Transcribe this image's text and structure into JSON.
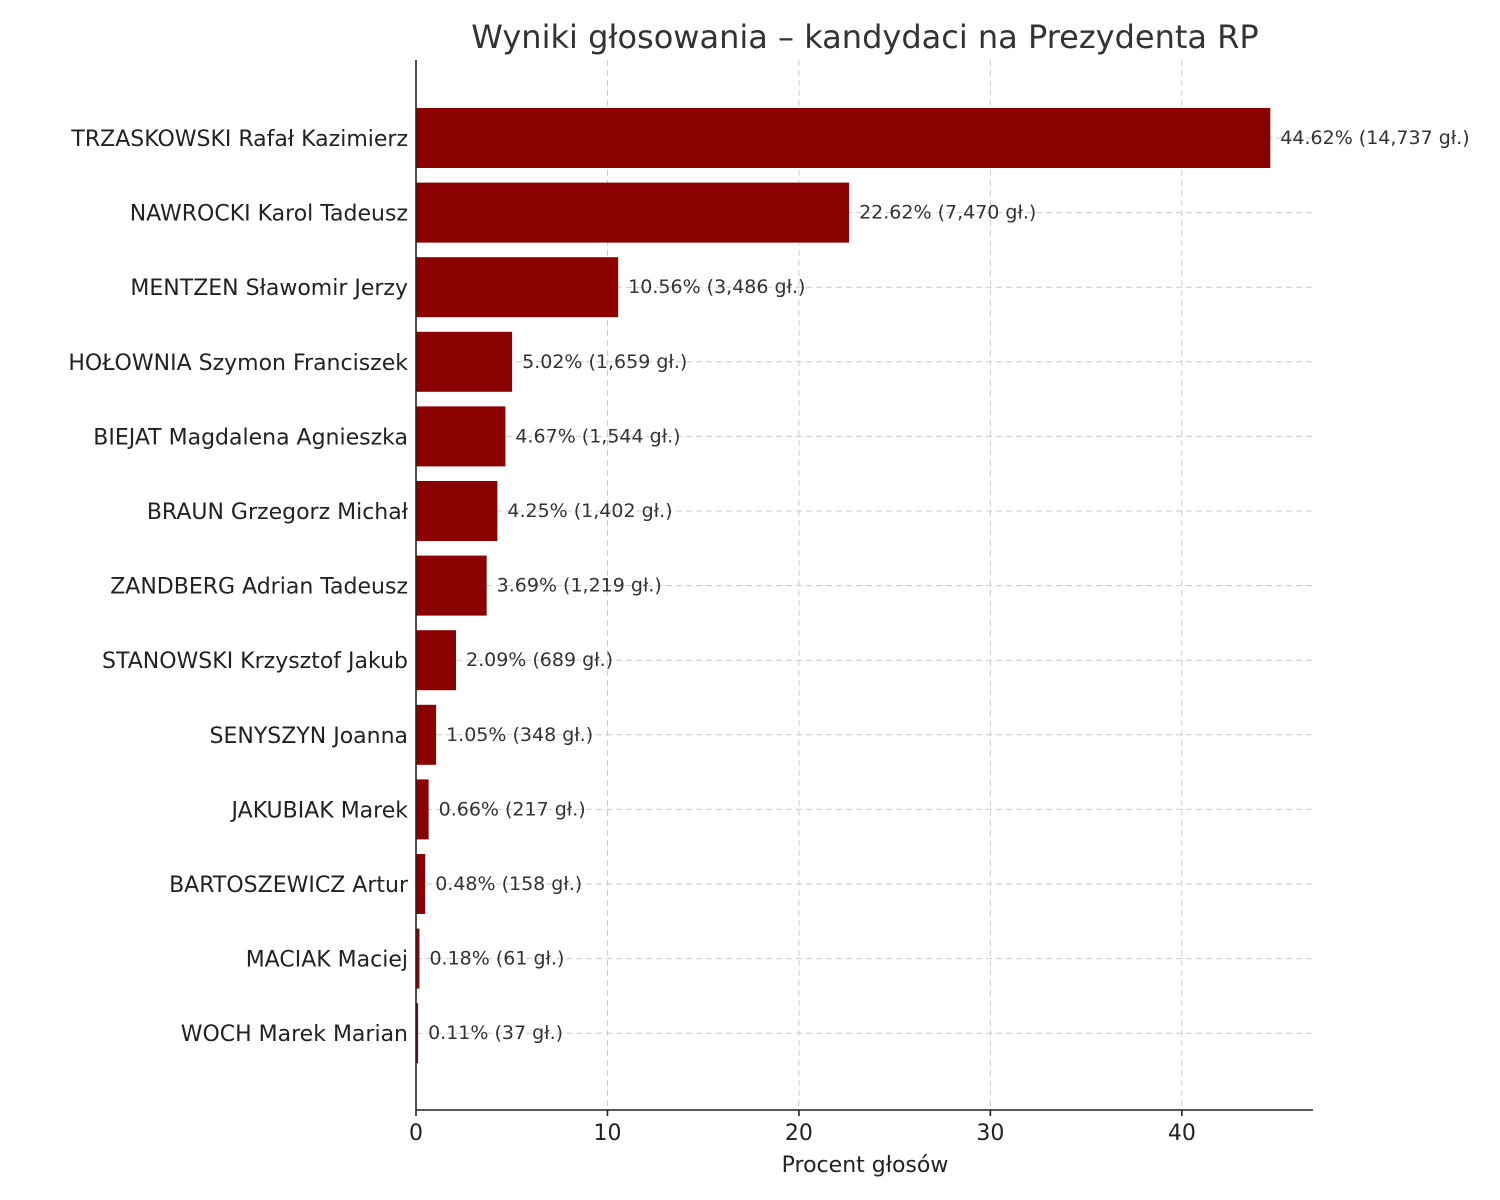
{
  "chart_data": {
    "type": "bar",
    "orientation": "horizontal",
    "title": "Wyniki głosowania – kandydaci na Prezydenta RP",
    "xlabel": "Procent głosów",
    "ylabel": "",
    "xlim": [
      0,
      46.85
    ],
    "xticks": [
      0,
      10,
      20,
      30,
      40
    ],
    "grid": true,
    "bar_color": "#8b0000",
    "categories": [
      "TRZASKOWSKI Rafał Kazimierz",
      "NAWROCKI Karol Tadeusz",
      "MENTZEN Sławomir Jerzy",
      "HOŁOWNIA Szymon Franciszek",
      "BIEJAT Magdalena Agnieszka",
      "BRAUN Grzegorz Michał",
      "ZANDBERG Adrian Tadeusz",
      "STANOWSKI Krzysztof Jakub",
      "SENYSZYN Joanna",
      "JAKUBIAK Marek",
      "BARTOSZEWICZ Artur",
      "MACIAK Maciej",
      "WOCH Marek Marian"
    ],
    "values": [
      44.62,
      22.62,
      10.56,
      5.02,
      4.67,
      4.25,
      3.69,
      2.09,
      1.05,
      0.66,
      0.48,
      0.18,
      0.11
    ],
    "votes": [
      14737,
      7470,
      3486,
      1659,
      1544,
      1402,
      1219,
      689,
      348,
      217,
      158,
      61,
      37
    ],
    "data_labels": [
      "44.62% (14,737 gł.)",
      "22.62% (7,470 gł.)",
      "10.56% (3,486 gł.)",
      "5.02% (1,659 gł.)",
      "4.67% (1,544 gł.)",
      "4.25% (1,402 gł.)",
      "3.69% (1,219 gł.)",
      "2.09% (689 gł.)",
      "1.05% (348 gł.)",
      "0.66% (217 gł.)",
      "0.48% (158 gł.)",
      "0.18% (61 gł.)",
      "0.11% (37 gł.)"
    ]
  }
}
